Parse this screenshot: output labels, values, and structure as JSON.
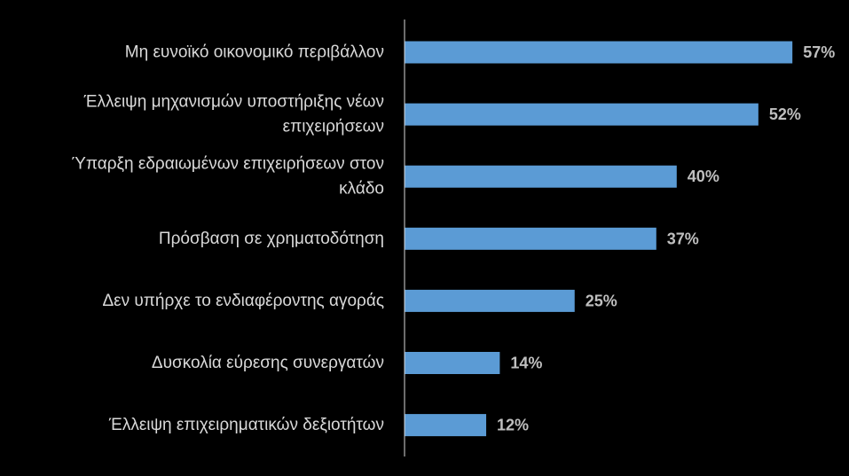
{
  "colors": {
    "background": "#000000",
    "bar": "#5b9bd5",
    "axis": "#d9d9d9",
    "category_text": "#d9d9d9",
    "value_text": "#bfbfbf"
  },
  "chart_data": {
    "type": "bar",
    "orientation": "horizontal",
    "title": "",
    "xlabel": "",
    "ylabel": "",
    "xlim": [
      0,
      60
    ],
    "grid": false,
    "legend": "none",
    "categories": [
      [
        "Μη ευνοϊκό οικονομικό περιβάλλον"
      ],
      [
        "Έλλειψη μηχανισμών υποστήριξης νέων",
        "επιχειρήσεων"
      ],
      [
        "Ύπαρξη εδραιωμένων επιχειρήσεων στον",
        "κλάδο"
      ],
      [
        "Πρόσβαση σε χρηματοδότηση"
      ],
      [
        "Δεν υπήρχε το ενδιαφέροντης αγοράς"
      ],
      [
        "Δυσκολία εύρεσης συνεργατών"
      ],
      [
        "Έλλειψη επιχειρηματικών δεξιοτήτων"
      ]
    ],
    "values": [
      57,
      52,
      40,
      37,
      25,
      14,
      12
    ],
    "value_labels": [
      "57%",
      "52%",
      "40%",
      "37%",
      "25%",
      "14%",
      "12%"
    ]
  }
}
